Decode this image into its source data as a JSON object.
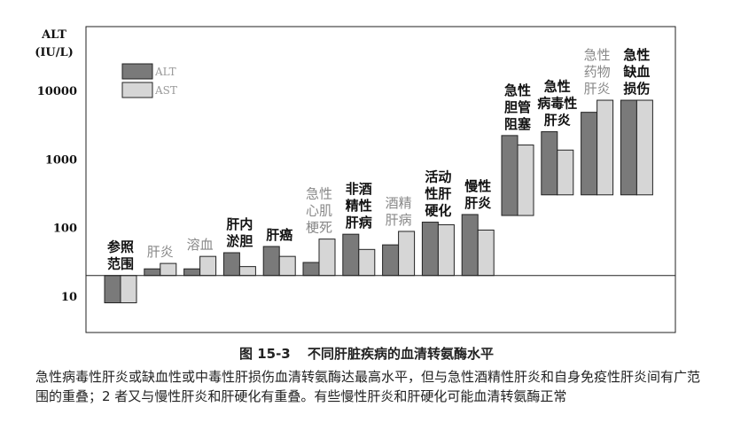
{
  "chart_data": {
    "type": "bar",
    "ylabel": [
      "ALT",
      "(IU/L)"
    ],
    "yscale": "log",
    "ylim": [
      5,
      60000
    ],
    "yticks": [
      {
        "value": 10,
        "label": "10"
      },
      {
        "value": 100,
        "label": "100"
      },
      {
        "value": 1000,
        "label": "1000"
      },
      {
        "value": 10000,
        "label": "10000"
      }
    ],
    "reference_line": 20,
    "legend": {
      "placement": "top-left",
      "items": [
        "ALT",
        "AST"
      ]
    },
    "colors": {
      "ALT": "#7a7a7a",
      "AST": "#d6d6d6",
      "label_dark": "#111111",
      "label_gray": "#888888"
    },
    "categories": [
      {
        "label": [
          "参照",
          "范围"
        ],
        "style": "bold",
        "ALT": [
          8,
          20
        ],
        "AST": [
          8,
          20
        ]
      },
      {
        "label": [
          "肝炎"
        ],
        "style": "gray",
        "ALT": [
          20,
          25
        ],
        "AST": [
          20,
          30
        ]
      },
      {
        "label": [
          "溶血"
        ],
        "style": "gray",
        "ALT": [
          20,
          25
        ],
        "AST": [
          20,
          38
        ]
      },
      {
        "label": [
          "肝内",
          "淤胆"
        ],
        "style": "bold",
        "ALT": [
          20,
          43
        ],
        "AST": [
          20,
          27
        ]
      },
      {
        "label": [
          "肝癌"
        ],
        "style": "bold",
        "ALT": [
          20,
          53
        ],
        "AST": [
          20,
          38
        ]
      },
      {
        "label": [
          "急性",
          "心肌",
          "梗死"
        ],
        "style": "gray",
        "ALT": [
          20,
          31
        ],
        "AST": [
          20,
          68
        ]
      },
      {
        "label": [
          "非酒",
          "精性",
          "肝病"
        ],
        "style": "bold",
        "ALT": [
          20,
          80
        ],
        "AST": [
          20,
          48
        ]
      },
      {
        "label": [
          "酒精",
          "肝病"
        ],
        "style": "gray",
        "ALT": [
          20,
          56
        ],
        "AST": [
          20,
          88
        ]
      },
      {
        "label": [
          "活动",
          "性肝",
          "硬化"
        ],
        "style": "bold",
        "ALT": [
          20,
          120
        ],
        "AST": [
          20,
          110
        ]
      },
      {
        "label": [
          "慢性",
          "肝炎"
        ],
        "style": "bold",
        "ALT": [
          20,
          155
        ],
        "AST": [
          20,
          92
        ]
      },
      {
        "label": [
          "急性",
          "胆管",
          "阻塞"
        ],
        "style": "bold",
        "ALT": [
          150,
          2200
        ],
        "AST": [
          150,
          1600
        ]
      },
      {
        "label": [
          "急性",
          "病毒性",
          "肝炎"
        ],
        "style": "bold",
        "ALT": [
          300,
          2500
        ],
        "AST": [
          300,
          1350
        ]
      },
      {
        "label": [
          "急性",
          "药物",
          "肝炎"
        ],
        "style": "gray",
        "ALT": [
          300,
          4800
        ],
        "AST": [
          300,
          7200
        ]
      },
      {
        "label": [
          "急性",
          "缺血",
          "损伤"
        ],
        "style": "bold",
        "ALT": [
          300,
          7200
        ],
        "AST": [
          300,
          7200
        ]
      }
    ]
  },
  "caption": {
    "fig_no": "图 15-3",
    "title": "不同肝脏疾病的血清转氨酶水平"
  },
  "note": "急性病毒性肝炎或缺血性或中毒性肝损伤血清转氨酶达最高水平，但与急性酒精性肝炎和自身免疫性肝炎间有广范围的重叠；2 者又与慢性肝炎和肝硬化有重叠。有些慢性肝炎和肝硬化可能血清转氨酶正常"
}
